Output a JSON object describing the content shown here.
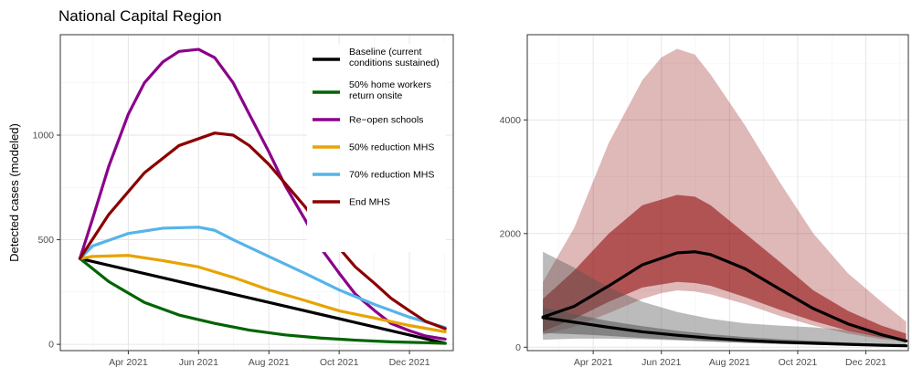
{
  "title": "National Capital Region",
  "chart_data": [
    {
      "type": "line",
      "panel": "left",
      "ylabel": "Detected cases (modeled)",
      "xlabel": "",
      "xlim": [
        "2021-02-01",
        "2022-01-08"
      ],
      "ylim": [
        -30,
        1480
      ],
      "x_ticks": [
        {
          "date": "2021-04-01",
          "label": "Apr 2021"
        },
        {
          "date": "2021-06-01",
          "label": "Jun 2021"
        },
        {
          "date": "2021-08-01",
          "label": "Aug 2021"
        },
        {
          "date": "2021-10-01",
          "label": "Oct 2021"
        },
        {
          "date": "2021-12-01",
          "label": "Dec 2021"
        }
      ],
      "y_ticks": [
        0,
        500,
        1000
      ],
      "grid": true,
      "legend_position": "top-right inside",
      "series": [
        {
          "name": "Baseline (current conditions sustained)",
          "color": "#000000",
          "points": [
            [
              "2021-02-18",
              410
            ],
            [
              "2022-01-01",
              5
            ]
          ]
        },
        {
          "name": "50% home workers return onsite",
          "color": "#006400",
          "points": [
            [
              "2021-02-18",
              410
            ],
            [
              "2021-03-15",
              300
            ],
            [
              "2021-04-15",
              200
            ],
            [
              "2021-05-15",
              140
            ],
            [
              "2021-06-15",
              100
            ],
            [
              "2021-07-15",
              68
            ],
            [
              "2021-08-15",
              45
            ],
            [
              "2021-09-15",
              30
            ],
            [
              "2021-10-15",
              20
            ],
            [
              "2021-11-15",
              12
            ],
            [
              "2021-12-15",
              8
            ],
            [
              "2022-01-01",
              5
            ]
          ]
        },
        {
          "name": "Re−open schools",
          "color": "#8B008B",
          "points": [
            [
              "2021-02-18",
              410
            ],
            [
              "2021-03-01",
              600
            ],
            [
              "2021-03-15",
              850
            ],
            [
              "2021-04-01",
              1100
            ],
            [
              "2021-04-15",
              1250
            ],
            [
              "2021-05-01",
              1350
            ],
            [
              "2021-05-15",
              1400
            ],
            [
              "2021-06-01",
              1410
            ],
            [
              "2021-06-15",
              1370
            ],
            [
              "2021-07-01",
              1250
            ],
            [
              "2021-07-15",
              1100
            ],
            [
              "2021-08-01",
              920
            ],
            [
              "2021-08-15",
              760
            ],
            [
              "2021-09-01",
              600
            ],
            [
              "2021-09-15",
              460
            ],
            [
              "2021-10-01",
              340
            ],
            [
              "2021-10-15",
              240
            ],
            [
              "2021-11-01",
              160
            ],
            [
              "2021-11-15",
              100
            ],
            [
              "2021-12-01",
              65
            ],
            [
              "2021-12-15",
              40
            ],
            [
              "2022-01-01",
              25
            ]
          ]
        },
        {
          "name": "50% reduction MHS",
          "color": "#E8A300",
          "points": [
            [
              "2021-02-18",
              410
            ],
            [
              "2021-03-01",
              420
            ],
            [
              "2021-04-01",
              425
            ],
            [
              "2021-05-01",
              400
            ],
            [
              "2021-06-01",
              370
            ],
            [
              "2021-07-01",
              320
            ],
            [
              "2021-08-01",
              260
            ],
            [
              "2021-09-01",
              210
            ],
            [
              "2021-10-01",
              160
            ],
            [
              "2021-11-01",
              125
            ],
            [
              "2021-12-01",
              90
            ],
            [
              "2022-01-01",
              60
            ]
          ]
        },
        {
          "name": "70% reduction MHS",
          "color": "#56B4E9",
          "points": [
            [
              "2021-02-18",
              410
            ],
            [
              "2021-03-01",
              470
            ],
            [
              "2021-04-01",
              530
            ],
            [
              "2021-05-01",
              555
            ],
            [
              "2021-06-01",
              560
            ],
            [
              "2021-06-15",
              545
            ],
            [
              "2021-07-01",
              500
            ],
            [
              "2021-08-01",
              420
            ],
            [
              "2021-09-01",
              340
            ],
            [
              "2021-10-01",
              260
            ],
            [
              "2021-11-01",
              190
            ],
            [
              "2021-12-01",
              130
            ],
            [
              "2022-01-01",
              80
            ]
          ]
        },
        {
          "name": "End MHS",
          "color": "#8B0000",
          "points": [
            [
              "2021-02-18",
              410
            ],
            [
              "2021-03-15",
              620
            ],
            [
              "2021-04-15",
              820
            ],
            [
              "2021-05-15",
              950
            ],
            [
              "2021-06-15",
              1010
            ],
            [
              "2021-07-01",
              1000
            ],
            [
              "2021-07-15",
              950
            ],
            [
              "2021-08-01",
              860
            ],
            [
              "2021-08-15",
              770
            ],
            [
              "2021-09-01",
              660
            ],
            [
              "2021-09-15",
              560
            ],
            [
              "2021-10-01",
              460
            ],
            [
              "2021-10-15",
              370
            ],
            [
              "2021-11-01",
              290
            ],
            [
              "2021-11-15",
              220
            ],
            [
              "2021-12-01",
              160
            ],
            [
              "2021-12-15",
              110
            ],
            [
              "2022-01-01",
              75
            ]
          ]
        }
      ]
    },
    {
      "type": "area",
      "panel": "right",
      "xlabel": "",
      "ylabel": "",
      "xlim": [
        "2021-02-01",
        "2022-01-08"
      ],
      "ylim": [
        -60,
        5500
      ],
      "x_ticks": [
        {
          "date": "2021-04-01",
          "label": "Apr 2021"
        },
        {
          "date": "2021-06-01",
          "label": "Jun 2021"
        },
        {
          "date": "2021-08-01",
          "label": "Aug 2021"
        },
        {
          "date": "2021-10-01",
          "label": "Oct 2021"
        },
        {
          "date": "2021-12-01",
          "label": "Dec 2021"
        }
      ],
      "y_ticks": [
        0,
        2000,
        4000
      ],
      "grid": true,
      "bands": [
        {
          "color": "#8B0000",
          "opacity": 0.28,
          "points": [
            [
              "2021-02-15",
              220,
              1150
            ],
            [
              "2021-03-15",
              360,
              2100
            ],
            [
              "2021-04-15",
              600,
              3600
            ],
            [
              "2021-05-15",
              850,
              4700
            ],
            [
              "2021-06-01",
              950,
              5100
            ],
            [
              "2021-06-15",
              1000,
              5250
            ],
            [
              "2021-07-01",
              980,
              5150
            ],
            [
              "2021-07-15",
              930,
              4800
            ],
            [
              "2021-08-15",
              760,
              3900
            ],
            [
              "2021-09-15",
              550,
              2900
            ],
            [
              "2021-10-15",
              380,
              2000
            ],
            [
              "2021-11-15",
              240,
              1300
            ],
            [
              "2021-12-15",
              140,
              800
            ],
            [
              "2022-01-06",
              100,
              450
            ]
          ]
        },
        {
          "color": "#8B0000",
          "opacity": 0.55,
          "points": [
            [
              "2021-02-15",
              280,
              850
            ],
            [
              "2021-03-15",
              500,
              1350
            ],
            [
              "2021-04-15",
              800,
              2000
            ],
            [
              "2021-05-15",
              1050,
              2500
            ],
            [
              "2021-06-15",
              1150,
              2680
            ],
            [
              "2021-07-01",
              1130,
              2650
            ],
            [
              "2021-07-15",
              1080,
              2500
            ],
            [
              "2021-08-15",
              880,
              2000
            ],
            [
              "2021-09-15",
              660,
              1500
            ],
            [
              "2021-10-15",
              460,
              1000
            ],
            [
              "2021-11-15",
              290,
              640
            ],
            [
              "2021-12-15",
              170,
              380
            ],
            [
              "2022-01-06",
              110,
              240
            ]
          ]
        },
        {
          "color": "#555555",
          "opacity": 0.4,
          "points": [
            [
              "2021-02-15",
              130,
              1680
            ],
            [
              "2021-03-15",
              150,
              1400
            ],
            [
              "2021-04-15",
              150,
              1050
            ],
            [
              "2021-05-15",
              140,
              800
            ],
            [
              "2021-06-15",
              120,
              620
            ],
            [
              "2021-07-15",
              100,
              500
            ],
            [
              "2021-08-15",
              80,
              420
            ],
            [
              "2021-09-15",
              60,
              380
            ],
            [
              "2021-10-15",
              45,
              350
            ],
            [
              "2021-11-15",
              30,
              300
            ],
            [
              "2021-12-15",
              20,
              200
            ],
            [
              "2022-01-06",
              15,
              120
            ]
          ]
        },
        {
          "color": "#555555",
          "opacity": 0.55,
          "points": [
            [
              "2021-02-15",
              250,
              700
            ],
            [
              "2021-03-15",
              230,
              580
            ],
            [
              "2021-04-15",
              200,
              460
            ],
            [
              "2021-05-15",
              160,
              370
            ],
            [
              "2021-06-15",
              130,
              290
            ],
            [
              "2021-07-15",
              100,
              230
            ],
            [
              "2021-08-15",
              75,
              180
            ],
            [
              "2021-09-15",
              55,
              140
            ],
            [
              "2021-10-15",
              40,
              110
            ],
            [
              "2021-11-15",
              28,
              80
            ],
            [
              "2021-12-15",
              18,
              55
            ],
            [
              "2022-01-06",
              12,
              40
            ]
          ]
        }
      ],
      "series": [
        {
          "color": "#000000",
          "points": [
            [
              "2021-02-15",
              530
            ],
            [
              "2021-03-15",
              720
            ],
            [
              "2021-04-15",
              1080
            ],
            [
              "2021-05-15",
              1450
            ],
            [
              "2021-06-15",
              1660
            ],
            [
              "2021-07-01",
              1680
            ],
            [
              "2021-07-15",
              1630
            ],
            [
              "2021-08-15",
              1380
            ],
            [
              "2021-09-15",
              1020
            ],
            [
              "2021-10-15",
              680
            ],
            [
              "2021-11-15",
              410
            ],
            [
              "2021-12-15",
              220
            ],
            [
              "2022-01-06",
              110
            ]
          ]
        },
        {
          "color": "#000000",
          "points": [
            [
              "2021-02-15",
              520
            ],
            [
              "2021-03-15",
              440
            ],
            [
              "2021-04-15",
              350
            ],
            [
              "2021-05-15",
              270
            ],
            [
              "2021-06-15",
              210
            ],
            [
              "2021-07-15",
              160
            ],
            [
              "2021-08-15",
              120
            ],
            [
              "2021-09-15",
              90
            ],
            [
              "2021-10-15",
              70
            ],
            [
              "2021-11-15",
              50
            ],
            [
              "2021-12-15",
              35
            ],
            [
              "2022-01-06",
              25
            ]
          ]
        }
      ]
    }
  ]
}
